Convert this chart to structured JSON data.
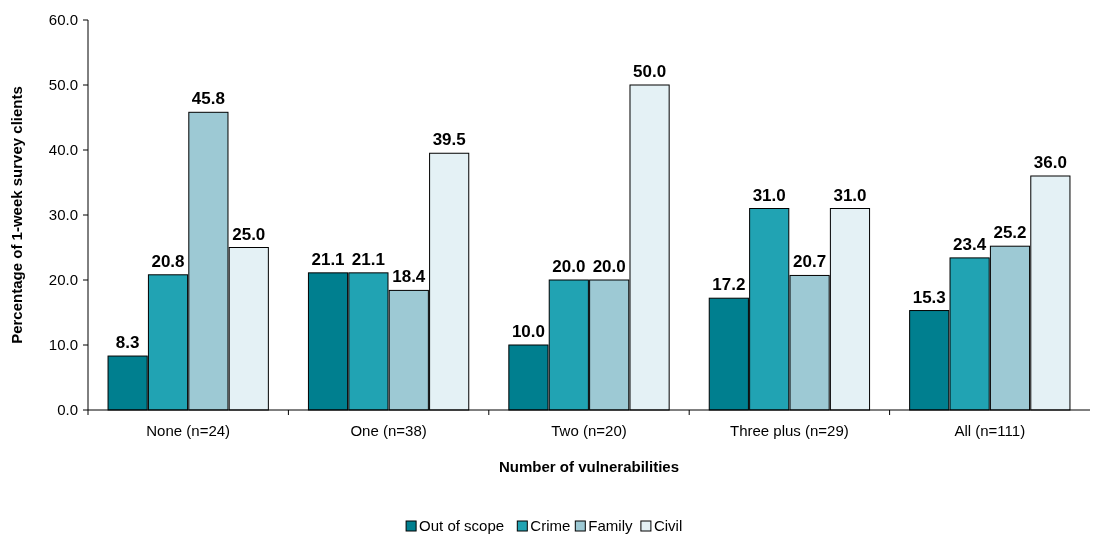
{
  "chart_data": {
    "type": "bar",
    "xlabel": "Number of vulnerabilities",
    "ylabel": "Percentage of 1-week survey clients",
    "categories": [
      "None (n=24)",
      "One (n=38)",
      "Two (n=20)",
      "Three plus (n=29)",
      "All (n=111)"
    ],
    "series": [
      {
        "name": "Out of scope",
        "color": "#007f8f",
        "values": [
          8.3,
          21.1,
          10.0,
          17.2,
          15.3
        ],
        "value_labels": [
          "8.3",
          "21.1",
          "10.0",
          "17.2",
          "15.3"
        ]
      },
      {
        "name": "Crime",
        "color": "#21a3b3",
        "values": [
          20.8,
          21.1,
          20.0,
          31.0,
          23.4
        ],
        "value_labels": [
          "20.8",
          "21.1",
          "20.0",
          "31.0",
          "23.4"
        ]
      },
      {
        "name": "Family",
        "color": "#9dc9d4",
        "values": [
          45.8,
          18.4,
          20.0,
          20.7,
          25.2
        ],
        "value_labels": [
          "45.8",
          "18.4",
          "20.0",
          "20.7",
          "25.2"
        ]
      },
      {
        "name": "Civil",
        "color": "#e4f1f5",
        "values": [
          25.0,
          39.5,
          50.0,
          31.0,
          36.0
        ],
        "value_labels": [
          "25.0",
          "39.5",
          "50.0",
          "31.0",
          "36.0"
        ]
      }
    ],
    "ylim": [
      0,
      60
    ],
    "yticks": [
      {
        "value": 0,
        "label": "0.0"
      },
      {
        "value": 10,
        "label": "10.0"
      },
      {
        "value": 20,
        "label": "20.0"
      },
      {
        "value": 30,
        "label": "30.0"
      },
      {
        "value": 40,
        "label": "40.0"
      },
      {
        "value": 50,
        "label": "50.0"
      },
      {
        "value": 60,
        "label": "60.0"
      }
    ],
    "grid": false,
    "legend": "bottom"
  }
}
